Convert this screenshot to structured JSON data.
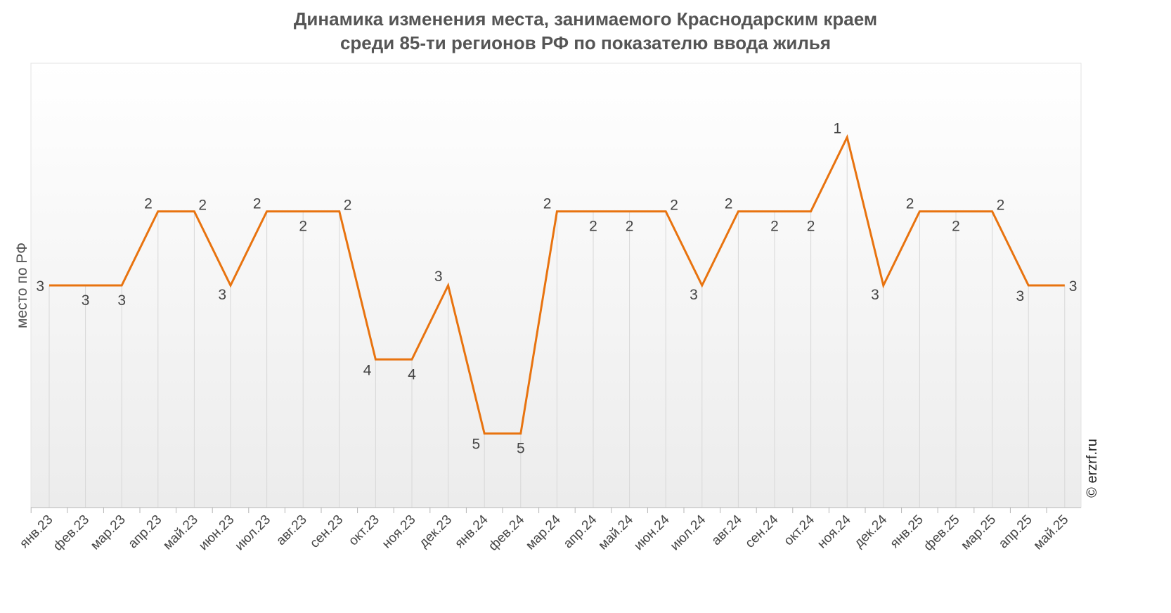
{
  "chart_data": {
    "type": "line",
    "title_line1": "Динамика изменения места, занимаемого Краснодарским краем",
    "title_line2": "среди 85-ти регионов РФ по показателю ввода жилья",
    "ylabel": "место по РФ",
    "xlabel": "",
    "y_inverted": true,
    "ylim": [
      0,
      6
    ],
    "grid": "vertical",
    "legend": "none",
    "categories": [
      "янв.23",
      "фев.23",
      "мар.23",
      "апр.23",
      "май.23",
      "июн.23",
      "июл.23",
      "авг.23",
      "сен.23",
      "окт.23",
      "ноя.23",
      "дек.23",
      "янв.24",
      "фев.24",
      "мар.24",
      "апр.24",
      "май.24",
      "июн.24",
      "июл.24",
      "авг.24",
      "сен.24",
      "окт.24",
      "ноя.24",
      "дек.24",
      "янв.25",
      "фев.25",
      "мар.25",
      "апр.25",
      "май.25"
    ],
    "series": [
      {
        "values": [
          3,
          3,
          3,
          2,
          2,
          3,
          2,
          2,
          2,
          4,
          4,
          3,
          5,
          5,
          2,
          2,
          2,
          2,
          3,
          2,
          2,
          2,
          1,
          3,
          2,
          2,
          2,
          3,
          3
        ]
      }
    ],
    "colors": {
      "line": "#E8730F",
      "gridline": "#d7d7d7",
      "background_top": "#ffffff",
      "background_bottom": "#ececec"
    },
    "watermark": "© erzrf.ru"
  }
}
